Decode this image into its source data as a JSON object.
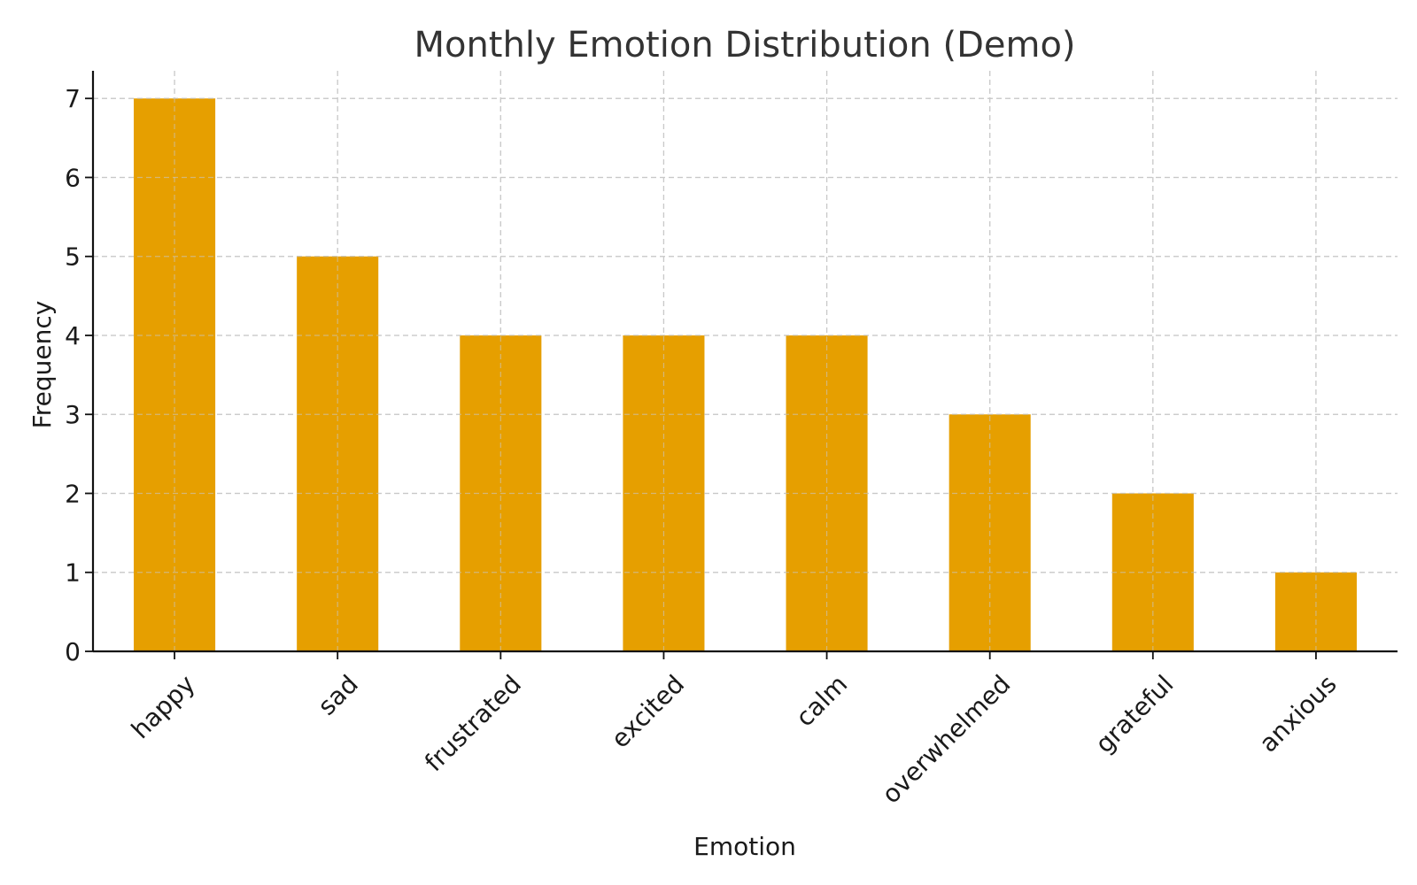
{
  "chart_data": {
    "type": "bar",
    "title": "Monthly Emotion Distribution (Demo)",
    "xlabel": "Emotion",
    "ylabel": "Frequency",
    "categories": [
      "happy",
      "sad",
      "frustrated",
      "excited",
      "calm",
      "overwhelmed",
      "grateful",
      "anxious"
    ],
    "values": [
      7,
      5,
      4,
      4,
      4,
      3,
      2,
      1
    ],
    "ylim": [
      0,
      7.35
    ],
    "yticks": [
      "0",
      "1",
      "2",
      "3",
      "4",
      "5",
      "6",
      "7"
    ],
    "grid": true,
    "bar_color": "#E69F00",
    "xtick_rotation": "45-degrees"
  }
}
